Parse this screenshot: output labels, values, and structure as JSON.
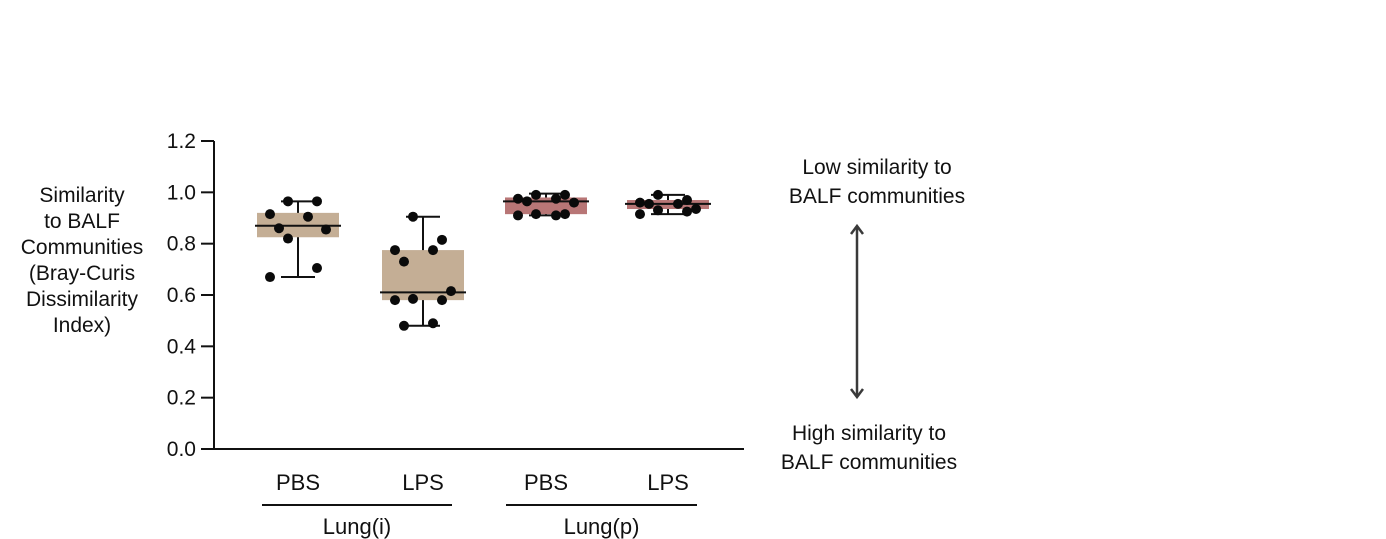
{
  "chart_data": {
    "type": "box",
    "ylabel": [
      "Similarity",
      "to BALF",
      "Communities",
      "(Bray-Curis",
      "Dissimilarity",
      "Index)"
    ],
    "ylim": [
      0,
      1.2
    ],
    "yticks": [
      "0.0",
      "0.2",
      "0.4",
      "0.6",
      "0.8",
      "1.0",
      "1.2"
    ],
    "groups": [
      {
        "label": "Lung(i)",
        "boxes": [
          {
            "label": "PBS",
            "color": "#c4ae95",
            "min": 0.67,
            "q1": 0.825,
            "median": 0.87,
            "q3": 0.92,
            "max": 0.965,
            "points": [
              0.965,
              0.965,
              0.915,
              0.905,
              0.86,
              0.855,
              0.82,
              0.705,
              0.67
            ]
          },
          {
            "label": "LPS",
            "color": "#c4ae95",
            "min": 0.48,
            "q1": 0.58,
            "median": 0.61,
            "q3": 0.775,
            "max": 0.905,
            "points": [
              0.905,
              0.815,
              0.775,
              0.775,
              0.73,
              0.615,
              0.585,
              0.58,
              0.58,
              0.49,
              0.48
            ]
          }
        ]
      },
      {
        "label": "Lung(p)",
        "boxes": [
          {
            "label": "PBS",
            "color": "#b87676",
            "min": 0.91,
            "q1": 0.915,
            "median": 0.965,
            "q3": 0.98,
            "max": 0.995,
            "points": [
              0.99,
              0.99,
              0.975,
              0.975,
              0.965,
              0.96,
              0.915,
              0.915,
              0.91,
              0.91
            ]
          },
          {
            "label": "LPS",
            "color": "#b87676",
            "min": 0.915,
            "q1": 0.935,
            "median": 0.955,
            "q3": 0.97,
            "max": 0.99,
            "points": [
              0.99,
              0.97,
              0.96,
              0.955,
              0.955,
              0.935,
              0.93,
              0.925,
              0.915
            ]
          }
        ]
      }
    ],
    "annotations": {
      "top": [
        "Low similarity to",
        "BALF communities"
      ],
      "bottom": [
        "High similarity to",
        "BALF communities"
      ]
    }
  }
}
